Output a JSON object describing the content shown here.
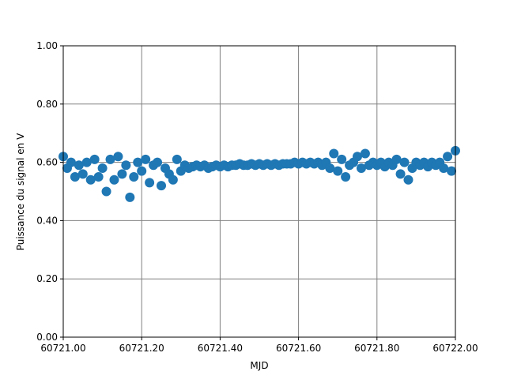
{
  "chart_data": {
    "type": "scatter",
    "xlabel": "MJD",
    "ylabel": "Puissance du signal en V",
    "xlim": [
      60721,
      60722
    ],
    "ylim": [
      0,
      1
    ],
    "xticks": [
      {
        "value": 60721,
        "label": "60721.00"
      },
      {
        "value": 60721.2,
        "label": "60721.20"
      },
      {
        "value": 60721.4,
        "label": "60721.40"
      },
      {
        "value": 60721.6,
        "label": "60721.60"
      },
      {
        "value": 60721.8,
        "label": "60721.80"
      },
      {
        "value": 60722,
        "label": "60722.00"
      }
    ],
    "yticks": [
      {
        "value": 0,
        "label": "0.00"
      },
      {
        "value": 0.2,
        "label": "0.20"
      },
      {
        "value": 0.4,
        "label": "0.40"
      },
      {
        "value": 0.6,
        "label": "0.60"
      },
      {
        "value": 0.8,
        "label": "0.80"
      },
      {
        "value": 1,
        "label": "1.00"
      }
    ],
    "grid": true,
    "color": "#1f77b4",
    "x": [
      60721.0,
      60721.01,
      60721.02,
      60721.03,
      60721.04,
      60721.05,
      60721.06,
      60721.07,
      60721.08,
      60721.09,
      60721.1,
      60721.11,
      60721.12,
      60721.13,
      60721.14,
      60721.15,
      60721.16,
      60721.17,
      60721.18,
      60721.19,
      60721.2,
      60721.21,
      60721.22,
      60721.23,
      60721.24,
      60721.25,
      60721.26,
      60721.27,
      60721.28,
      60721.29,
      60721.3,
      60721.31,
      60721.32,
      60721.33,
      60721.34,
      60721.35,
      60721.36,
      60721.37,
      60721.38,
      60721.39,
      60721.4,
      60721.41,
      60721.42,
      60721.43,
      60721.44,
      60721.45,
      60721.46,
      60721.47,
      60721.48,
      60721.49,
      60721.5,
      60721.51,
      60721.52,
      60721.53,
      60721.54,
      60721.55,
      60721.56,
      60721.57,
      60721.58,
      60721.59,
      60721.6,
      60721.61,
      60721.62,
      60721.63,
      60721.64,
      60721.65,
      60721.66,
      60721.67,
      60721.68,
      60721.69,
      60721.7,
      60721.71,
      60721.72,
      60721.73,
      60721.74,
      60721.75,
      60721.76,
      60721.77,
      60721.78,
      60721.79,
      60721.8,
      60721.81,
      60721.82,
      60721.83,
      60721.84,
      60721.85,
      60721.86,
      60721.87,
      60721.88,
      60721.89,
      60721.9,
      60721.91,
      60721.92,
      60721.93,
      60721.94,
      60721.95,
      60721.96,
      60721.97,
      60721.98,
      60721.99,
      60722.0
    ],
    "values": [
      0.62,
      0.58,
      0.6,
      0.55,
      0.59,
      0.56,
      0.6,
      0.54,
      0.61,
      0.55,
      0.58,
      0.5,
      0.61,
      0.54,
      0.62,
      0.56,
      0.59,
      0.48,
      0.55,
      0.6,
      0.57,
      0.61,
      0.53,
      0.59,
      0.6,
      0.52,
      0.58,
      0.56,
      0.54,
      0.61,
      0.57,
      0.59,
      0.58,
      0.585,
      0.59,
      0.585,
      0.59,
      0.58,
      0.585,
      0.59,
      0.585,
      0.59,
      0.585,
      0.59,
      0.59,
      0.595,
      0.59,
      0.59,
      0.595,
      0.59,
      0.595,
      0.59,
      0.595,
      0.59,
      0.595,
      0.59,
      0.595,
      0.595,
      0.595,
      0.6,
      0.595,
      0.6,
      0.595,
      0.6,
      0.595,
      0.6,
      0.59,
      0.6,
      0.58,
      0.63,
      0.57,
      0.61,
      0.55,
      0.59,
      0.6,
      0.62,
      0.58,
      0.63,
      0.59,
      0.6,
      0.59,
      0.6,
      0.585,
      0.6,
      0.59,
      0.61,
      0.56,
      0.6,
      0.54,
      0.58,
      0.6,
      0.59,
      0.6,
      0.585,
      0.6,
      0.59,
      0.6,
      0.58,
      0.62,
      0.57,
      0.64
    ]
  }
}
